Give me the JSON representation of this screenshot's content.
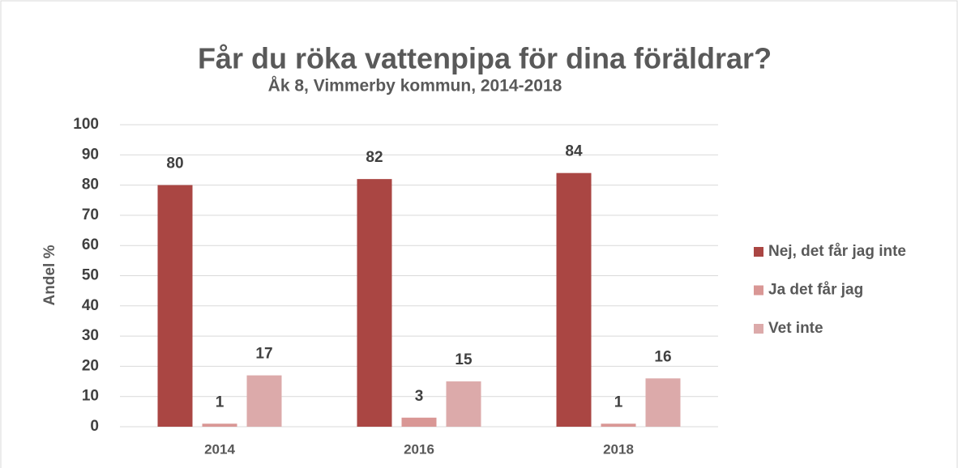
{
  "chart_data": {
    "type": "bar",
    "title": "Får du röka vattenpipa för dina föräldrar?",
    "subtitle": "Åk 8, Vimmerby kommun, 2014-2018",
    "y_label": "Andel %",
    "categories": [
      "2014",
      "2016",
      "2018"
    ],
    "series": [
      {
        "name": "Nej, det får jag inte",
        "color": "#aa4643",
        "values": [
          80,
          82,
          84
        ]
      },
      {
        "name": "Ja det får jag",
        "color": "#d99795",
        "values": [
          1,
          3,
          1
        ]
      },
      {
        "name": "Vet inte",
        "color": "#dcaaaa",
        "values": [
          17,
          15,
          16
        ]
      }
    ],
    "ylim": [
      0,
      100
    ],
    "yticks": [
      0,
      10,
      20,
      30,
      40,
      50,
      60,
      70,
      80,
      90,
      100
    ],
    "grid": true,
    "legend": "right"
  }
}
